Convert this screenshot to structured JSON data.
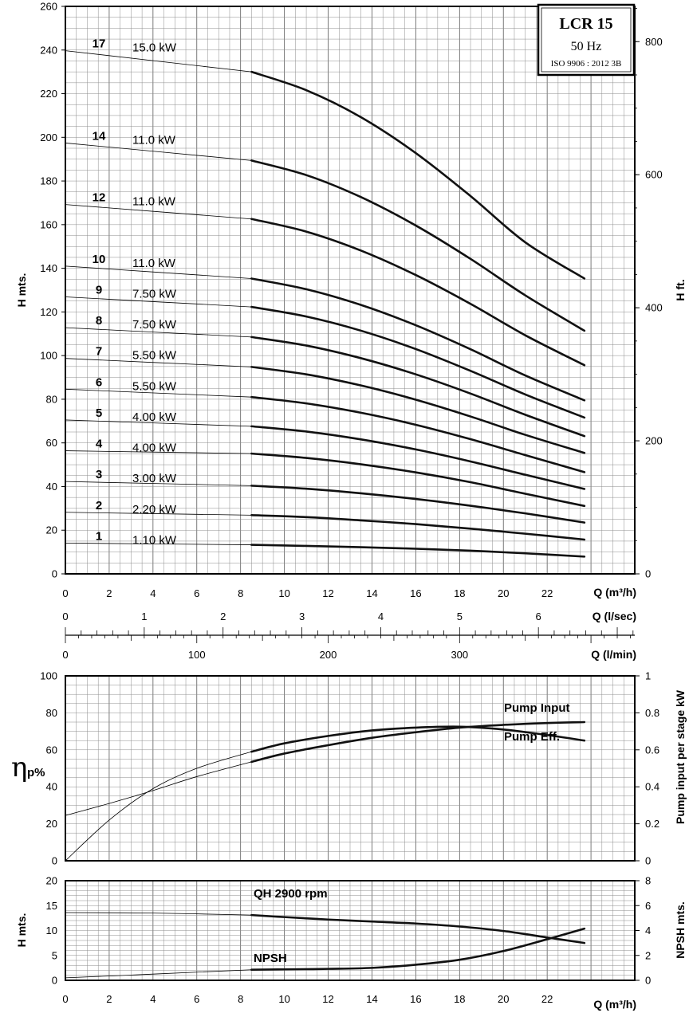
{
  "title_box": {
    "model": "LCR 15",
    "frequency": "50 Hz",
    "standard": "ISO 9906 : 2012 3B"
  },
  "chart_data": [
    {
      "id": "head",
      "type": "line",
      "ylabel": "H mts.",
      "y2label": "H ft.",
      "xlabel": "Q (m³/h)",
      "xlim": [
        0,
        26
      ],
      "ylim": [
        0,
        260
      ],
      "xticks": [
        0,
        2,
        4,
        6,
        8,
        10,
        12,
        14,
        16,
        18,
        20,
        22
      ],
      "yticks": [
        0,
        20,
        40,
        60,
        80,
        100,
        120,
        140,
        160,
        180,
        200,
        220,
        240,
        260
      ],
      "y2ticks": [
        0,
        200,
        400,
        600,
        800
      ],
      "x": [
        0,
        8.5,
        11,
        13.5,
        16,
        18.5,
        21,
        23.7
      ],
      "operating_range_start": 8.5,
      "series": [
        {
          "stages": "1",
          "power": "1.10 kW",
          "values": [
            14.1,
            13.3,
            12.8,
            12.2,
            11.5,
            10.6,
            9.4,
            7.9
          ]
        },
        {
          "stages": "2",
          "power": "2.20 kW",
          "values": [
            28.2,
            26.9,
            26.0,
            24.5,
            22.8,
            20.7,
            18.4,
            15.7
          ]
        },
        {
          "stages": "3",
          "power": "3.00 kW",
          "values": [
            42.3,
            40.4,
            39.0,
            36.9,
            34.3,
            31.2,
            27.7,
            23.5
          ]
        },
        {
          "stages": "4",
          "power": "4.00 kW",
          "values": [
            56.4,
            55.1,
            53.1,
            50.2,
            46.5,
            42.0,
            36.7,
            31.1
          ]
        },
        {
          "stages": "5",
          "power": "4.00 kW",
          "values": [
            70.5,
            67.6,
            65.2,
            61.6,
            57.0,
            51.5,
            45.4,
            38.9
          ]
        },
        {
          "stages": "6",
          "power": "5.50 kW",
          "values": [
            84.6,
            81.0,
            78.1,
            73.8,
            68.3,
            61.7,
            54.4,
            46.6
          ]
        },
        {
          "stages": "7",
          "power": "5.50 kW",
          "values": [
            98.7,
            94.8,
            91.4,
            86.3,
            79.8,
            72.1,
            63.7,
            55.4
          ]
        },
        {
          "stages": "8",
          "power": "7.50 kW",
          "values": [
            112.8,
            108.5,
            104.6,
            98.8,
            91.4,
            82.6,
            72.9,
            63.1
          ]
        },
        {
          "stages": "9",
          "power": "7.50 kW",
          "values": [
            126.9,
            122.3,
            117.9,
            111.4,
            103.0,
            93.0,
            82.2,
            71.6
          ]
        },
        {
          "stages": "10",
          "power": "11.0 kW",
          "values": [
            141.0,
            135.3,
            130.4,
            123.2,
            113.9,
            102.9,
            90.9,
            79.5
          ]
        },
        {
          "stages": "12",
          "power": "11.0 kW",
          "values": [
            169.2,
            162.6,
            156.8,
            148.1,
            136.9,
            123.7,
            109.3,
            95.6
          ]
        },
        {
          "stages": "14",
          "power": "11.0 kW",
          "values": [
            197.4,
            189.4,
            182.7,
            172.6,
            159.6,
            144.3,
            127.6,
            111.4
          ]
        },
        {
          "stages": "17",
          "power": "15.0 kW",
          "values": [
            239.7,
            230.0,
            221.6,
            209.2,
            192.8,
            173.1,
            151.9,
            135.3
          ]
        }
      ]
    },
    {
      "id": "secondary-axes",
      "type": "line",
      "axes": [
        {
          "label": "Q (l/sec)",
          "ticks": [
            0,
            1,
            2,
            3,
            4,
            5,
            6
          ]
        },
        {
          "label": "Q (l/min)",
          "ticks": [
            0,
            100,
            200,
            300
          ]
        }
      ]
    },
    {
      "id": "efficiency",
      "type": "line",
      "ylabel": "η",
      "ylabel_sub": "p%",
      "y2label": "Pump input per stage kW",
      "xlim": [
        0,
        26
      ],
      "ylim": [
        0,
        100
      ],
      "yticks": [
        0,
        20,
        40,
        60,
        80,
        100
      ],
      "y2ticks": [
        "0",
        "0.2",
        "0.4",
        "0.6",
        "0.8",
        "1"
      ],
      "series": [
        {
          "name": "Pump Input",
          "x": [
            0,
            2,
            4,
            6,
            8.5,
            10,
            12,
            14,
            16,
            18,
            20,
            22,
            23.7
          ],
          "values": [
            24.5,
            31,
            38,
            45.5,
            53.5,
            58,
            62.5,
            66.5,
            69.5,
            72,
            73.5,
            74.5,
            75
          ]
        },
        {
          "name": "Pump Eff.",
          "x": [
            0,
            2,
            4,
            6,
            8.5,
            10,
            12,
            14,
            16,
            18,
            20,
            22,
            23.7
          ],
          "values": [
            0,
            22,
            39,
            50,
            59,
            63.5,
            67.5,
            70.5,
            72,
            72.5,
            71,
            68,
            65
          ]
        }
      ]
    },
    {
      "id": "npsh",
      "type": "line",
      "ylabel": "H mts.",
      "y2label": "NPSH mts.",
      "xlabel": "Q (m³/h)",
      "xlim": [
        0,
        26
      ],
      "ylim": [
        0,
        20
      ],
      "xticks": [
        0,
        2,
        4,
        6,
        8,
        10,
        12,
        14,
        16,
        18,
        20,
        22
      ],
      "yticks": [
        0,
        5,
        10,
        15,
        20
      ],
      "y2ticks": [
        0,
        2,
        4,
        6,
        8
      ],
      "series": [
        {
          "name": "QH 2900 rpm",
          "x": [
            0,
            4,
            8.5,
            10,
            12,
            14,
            16,
            18,
            20,
            22,
            23.7
          ],
          "values": [
            13.6,
            13.5,
            13.1,
            12.7,
            12.2,
            11.8,
            11.4,
            10.8,
            9.9,
            8.6,
            7.5
          ]
        },
        {
          "name": "NPSH",
          "x": [
            0,
            4,
            8.5,
            10,
            12,
            14,
            16,
            18,
            20,
            22,
            23.7
          ],
          "values": [
            0.2,
            0.5,
            0.85,
            0.88,
            0.92,
            1.0,
            1.25,
            1.65,
            2.35,
            3.3,
            4.15
          ]
        }
      ]
    }
  ]
}
